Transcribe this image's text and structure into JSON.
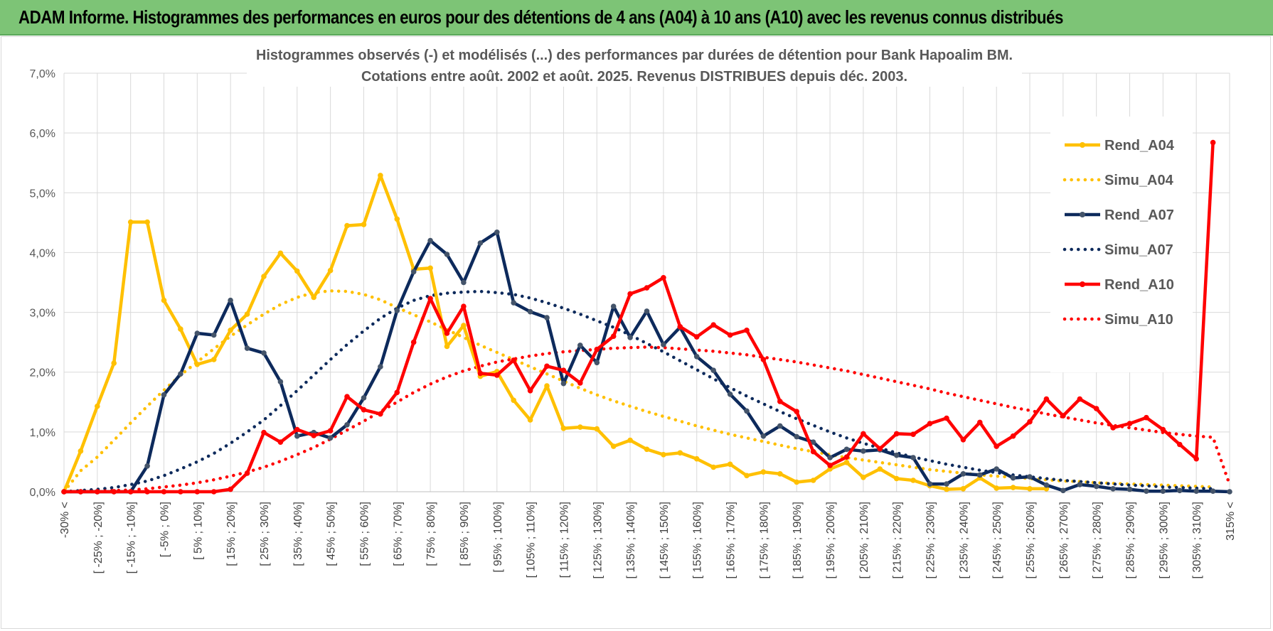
{
  "header": {
    "title": "ADAM Informe. Histogrammes des performances en euros pour des détentions de 4 ans (A04) à 10 ans (A10) avec les revenus connus distribués"
  },
  "chart_data": {
    "type": "line",
    "title": "Histogrammes observés (-) et modélisés (...) des performances par durées de détention pour Bank Hapoalim BM.",
    "subtitle": "Cotations entre août. 2002 et août. 2025.  Revenus DISTRIBUES depuis déc. 2003.",
    "xlabel": "",
    "ylabel": "",
    "ylim": [
      0,
      0.07
    ],
    "yticks": [
      "0,0%",
      "1,0%",
      "2,0%",
      "3,0%",
      "4,0%",
      "5,0%",
      "6,0%",
      "7,0%"
    ],
    "grid": true,
    "legend_position": "right",
    "categories": [
      "-30% <",
      "[ -30% ; -25%]",
      "[ -25% ; -20%]",
      "[ -20% ; -15%]",
      "[ -15% ; -10%]",
      "[ -10% ; -5%]",
      "[ -5% ; 0%]",
      "[ 0% ; 5%]",
      "[ 5% ; 10%]",
      "[ 10% ; 15%]",
      "[ 15% ; 20%]",
      "[ 20% ; 25%]",
      "[ 25% ; 30%]",
      "[ 30% ; 35%]",
      "[ 35% ; 40%]",
      "[ 40% ; 45%]",
      "[ 45% ; 50%]",
      "[ 50% ; 55%]",
      "[ 55% ; 60%]",
      "[ 60% ; 65%]",
      "[ 65% ; 70%]",
      "[ 70% ; 75%]",
      "[ 75% ; 80%]",
      "[ 80% ; 85%]",
      "[ 85% ; 90%]",
      "[ 90% ; 95%]",
      "[ 95% ; 100%]",
      "[ 100% ; 105%]",
      "[ 105% ; 110%]",
      "[ 110% ; 115%]",
      "[ 115% ; 120%]",
      "[ 120% ; 125%]",
      "[ 125% ; 130%]",
      "[ 130% ; 135%]",
      "[ 135% ; 140%]",
      "[ 140% ; 145%]",
      "[ 145% ; 150%]",
      "[ 150% ; 155%]",
      "[ 155% ; 160%]",
      "[ 160% ; 165%]",
      "[ 165% ; 170%]",
      "[ 170% ; 175%]",
      "[ 175% ; 180%]",
      "[ 180% ; 185%]",
      "[ 185% ; 190%]",
      "[ 190% ; 195%]",
      "[ 195% ; 200%]",
      "[ 200% ; 205%]",
      "[ 205% ; 210%]",
      "[ 210% ; 215%]",
      "[ 215% ; 220%]",
      "[ 220% ; 225%]",
      "[ 225% ; 230%]",
      "[ 230% ; 235%]",
      "[ 235% ; 240%]",
      "[ 240% ; 245%]",
      "[ 245% ; 250%]",
      "[ 250% ; 255%]",
      "[ 255% ; 260%]",
      "[ 260% ; 265%]",
      "[ 265% ; 270%]",
      "[ 270% ; 275%]",
      "[ 275% ; 280%]",
      "[ 280% ; 285%]",
      "[ 285% ; 290%]",
      "[ 290% ; 295%]",
      "[ 295% ; 300%]",
      "[ 300% ; 305%]",
      "[ 305% ; 310%]",
      "[ 310% ; 315%]",
      "315% <"
    ],
    "tick_every": 2,
    "series": [
      {
        "name": "Rend_A04",
        "color": "#ffc000",
        "style": "solid",
        "markers": true,
        "values": [
          0.0,
          0.0068,
          0.0143,
          0.0215,
          0.0451,
          0.0451,
          0.032,
          0.0272,
          0.0213,
          0.0221,
          0.027,
          0.0297,
          0.036,
          0.0399,
          0.0369,
          0.0325,
          0.037,
          0.0445,
          0.0447,
          0.0529,
          0.0456,
          0.0372,
          0.0374,
          0.0243,
          0.0278,
          0.0193,
          0.0201,
          0.0153,
          0.012,
          0.0177,
          0.0106,
          0.0108,
          0.0105,
          0.0076,
          0.0086,
          0.0071,
          0.0062,
          0.0065,
          0.0055,
          0.0041,
          0.0046,
          0.0027,
          0.0033,
          0.003,
          0.0016,
          0.0019,
          0.0038,
          0.0049,
          0.0024,
          0.0038,
          0.0022,
          0.0019,
          0.001,
          0.0004,
          0.0005,
          0.0023,
          0.0006,
          0.0007,
          0.0005,
          0.0005,
          null,
          null,
          null,
          null,
          null,
          null,
          null,
          null,
          null,
          null,
          null
        ]
      },
      {
        "name": "Simu_A04",
        "color": "#ffc000",
        "style": "dotted",
        "markers": false,
        "values": [
          0.0,
          0.0035,
          0.0058,
          0.0086,
          0.0115,
          0.0143,
          0.017,
          0.0195,
          0.0217,
          0.0239,
          0.026,
          0.0279,
          0.0297,
          0.0313,
          0.0325,
          0.0333,
          0.0336,
          0.0335,
          0.033,
          0.0321,
          0.0308,
          0.0296,
          0.0284,
          0.0271,
          0.0258,
          0.0245,
          0.0233,
          0.0221,
          0.0209,
          0.0197,
          0.0185,
          0.0173,
          0.0162,
          0.0152,
          0.0143,
          0.0134,
          0.0126,
          0.0118,
          0.011,
          0.0103,
          0.0096,
          0.009,
          0.0084,
          0.0078,
          0.0072,
          0.0067,
          0.0062,
          0.0057,
          0.0053,
          0.0049,
          0.0045,
          0.0041,
          0.0037,
          0.0034,
          0.0031,
          0.0028,
          0.0026,
          0.0024,
          0.0022,
          0.002,
          0.0018,
          0.0017,
          0.0015,
          0.0014,
          0.0013,
          0.0012,
          0.0011,
          0.001,
          0.0009,
          0.0008,
          null
        ]
      },
      {
        "name": "Rend_A07",
        "color": "#0d2a5c",
        "style": "solid",
        "markers": true,
        "values": [
          0.0,
          0.0,
          0.0,
          0.0,
          0.0,
          0.0043,
          0.0162,
          0.0197,
          0.0265,
          0.0262,
          0.032,
          0.024,
          0.0232,
          0.0184,
          0.0093,
          0.0099,
          0.009,
          0.0112,
          0.0157,
          0.0209,
          0.0303,
          0.0368,
          0.042,
          0.0397,
          0.035,
          0.0416,
          0.0434,
          0.0316,
          0.0301,
          0.0291,
          0.0181,
          0.0245,
          0.0216,
          0.031,
          0.0258,
          0.0302,
          0.0246,
          0.0275,
          0.0226,
          0.0203,
          0.0163,
          0.0135,
          0.0093,
          0.011,
          0.0092,
          0.0083,
          0.0057,
          0.0071,
          0.0068,
          0.007,
          0.0061,
          0.0057,
          0.0013,
          0.0013,
          0.003,
          0.0028,
          0.0038,
          0.0023,
          0.0025,
          0.0011,
          0.0002,
          0.0012,
          0.0009,
          0.0005,
          0.0004,
          0.0001,
          0.0001,
          0.0002,
          0.0001,
          0.0001,
          0.0
        ]
      },
      {
        "name": "Simu_A07",
        "color": "#0d2a5c",
        "style": "dotted",
        "markers": false,
        "values": [
          0.0,
          0.0002,
          0.0004,
          0.0007,
          0.0012,
          0.0018,
          0.0027,
          0.0038,
          0.005,
          0.0064,
          0.0081,
          0.01,
          0.012,
          0.0144,
          0.0169,
          0.0195,
          0.0221,
          0.0246,
          0.0269,
          0.029,
          0.0307,
          0.032,
          0.0328,
          0.0332,
          0.0334,
          0.0335,
          0.0333,
          0.033,
          0.0324,
          0.0316,
          0.0307,
          0.0297,
          0.0286,
          0.0275,
          0.0262,
          0.0248,
          0.0234,
          0.0219,
          0.0204,
          0.0189,
          0.0174,
          0.016,
          0.0147,
          0.0134,
          0.0122,
          0.0111,
          0.01,
          0.009,
          0.0081,
          0.0073,
          0.0065,
          0.0058,
          0.0052,
          0.0046,
          0.0041,
          0.0036,
          0.0032,
          0.0028,
          0.0025,
          0.0022,
          0.0019,
          0.0017,
          0.0015,
          0.0013,
          0.0011,
          0.001,
          0.0008,
          0.0007,
          0.0006,
          0.0005,
          null
        ]
      },
      {
        "name": "Rend_A10",
        "color": "#ff0000",
        "style": "solid",
        "markers": true,
        "values": [
          0.0,
          0.0,
          0.0,
          0.0,
          0.0,
          0.0,
          0.0,
          0.0,
          0.0,
          0.0,
          0.0004,
          0.0031,
          0.0099,
          0.0083,
          0.0104,
          0.0094,
          0.0102,
          0.0159,
          0.0137,
          0.013,
          0.0166,
          0.025,
          0.0323,
          0.0265,
          0.031,
          0.0198,
          0.0195,
          0.022,
          0.0169,
          0.021,
          0.0203,
          0.0182,
          0.0238,
          0.026,
          0.0331,
          0.0341,
          0.0358,
          0.0276,
          0.0259,
          0.0279,
          0.0262,
          0.027,
          0.0221,
          0.0151,
          0.0134,
          0.0067,
          0.0044,
          0.0058,
          0.0097,
          0.0072,
          0.0097,
          0.0096,
          0.0114,
          0.0123,
          0.0087,
          0.0116,
          0.0076,
          0.0093,
          0.0117,
          0.0155,
          0.0127,
          0.0155,
          0.0139,
          0.0107,
          0.0114,
          0.0124,
          0.0104,
          0.0079,
          0.0055,
          0.0584,
          null
        ]
      },
      {
        "name": "Simu_A10",
        "color": "#ff0000",
        "style": "dotted",
        "markers": false,
        "values": [
          0.0,
          0.0,
          0.0001,
          0.0002,
          0.0003,
          0.0005,
          0.0008,
          0.0011,
          0.0015,
          0.002,
          0.0026,
          0.0033,
          0.0041,
          0.0051,
          0.0062,
          0.0074,
          0.0088,
          0.0103,
          0.0118,
          0.0134,
          0.015,
          0.0166,
          0.018,
          0.0192,
          0.0202,
          0.021,
          0.0217,
          0.0222,
          0.0227,
          0.0231,
          0.0234,
          0.0236,
          0.0238,
          0.024,
          0.0241,
          0.0242,
          0.0241,
          0.0239,
          0.0237,
          0.0235,
          0.0232,
          0.0229,
          0.0225,
          0.0221,
          0.0217,
          0.0212,
          0.0207,
          0.0202,
          0.0196,
          0.019,
          0.0184,
          0.0178,
          0.0172,
          0.0165,
          0.0159,
          0.0153,
          0.0147,
          0.0141,
          0.0136,
          0.013,
          0.0125,
          0.012,
          0.0115,
          0.0111,
          0.0107,
          0.0103,
          0.0099,
          0.0096,
          0.0093,
          0.0091,
          0.0012
        ]
      }
    ]
  }
}
